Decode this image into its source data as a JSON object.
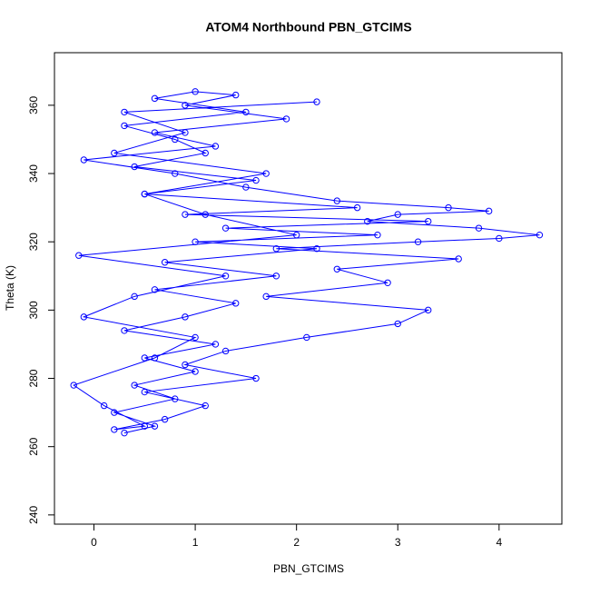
{
  "chart_data": {
    "type": "line",
    "title": "ATOM4 Northbound PBN_GTCIMS",
    "x_label": "PBN_GTCIMS",
    "y_label": "Theta (K)",
    "x": [
      0.3,
      0.6,
      0.2,
      0.8,
      0.4,
      1.0,
      0.5,
      1.2,
      0.3,
      0.9,
      1.4,
      0.6,
      1.8,
      0.7,
      2.2,
      1.0,
      2.8,
      1.3,
      3.3,
      0.9,
      2.6,
      0.5,
      1.6,
      0.4,
      1.1,
      0.8,
      0.3,
      1.5,
      0.6,
      1.0,
      1.4,
      0.9,
      1.9,
      0.6,
      1.2,
      -0.1,
      0.8,
      1.5,
      2.4,
      3.5,
      3.9,
      3.0,
      2.7,
      3.8,
      4.4,
      4.0,
      3.2,
      1.8,
      3.6,
      2.4,
      2.9,
      1.7,
      3.3,
      3.0,
      2.1,
      1.3,
      0.9,
      1.6,
      0.5,
      1.1,
      0.7,
      0.2,
      0.5,
      0.1,
      -0.2,
      0.6,
      1.0,
      -0.1,
      0.4,
      1.3,
      -0.15,
      2.0,
      1.1,
      0.5,
      1.7,
      0.2,
      0.9,
      0.3,
      2.2
    ],
    "values": [
      264,
      266,
      270,
      274,
      278,
      282,
      286,
      290,
      294,
      298,
      302,
      306,
      310,
      314,
      318,
      320,
      322,
      324,
      326,
      328,
      330,
      334,
      338,
      342,
      346,
      350,
      354,
      358,
      362,
      364,
      363,
      360,
      356,
      352,
      348,
      344,
      340,
      336,
      332,
      330,
      329,
      328,
      326,
      324,
      322,
      321,
      320,
      318,
      315,
      312,
      308,
      304,
      300,
      296,
      292,
      288,
      284,
      280,
      276,
      272,
      268,
      265,
      266,
      272,
      278,
      286,
      292,
      298,
      304,
      310,
      316,
      322,
      328,
      334,
      340,
      346,
      352,
      358,
      361
    ],
    "color": "#0000ff",
    "xlim": [
      -0.39,
      4.62
    ],
    "xticks": [
      0,
      1,
      2,
      3,
      4
    ],
    "ylim": [
      237.3,
      375.4
    ],
    "yticks": [
      240,
      260,
      280,
      300,
      320,
      340,
      360
    ]
  }
}
